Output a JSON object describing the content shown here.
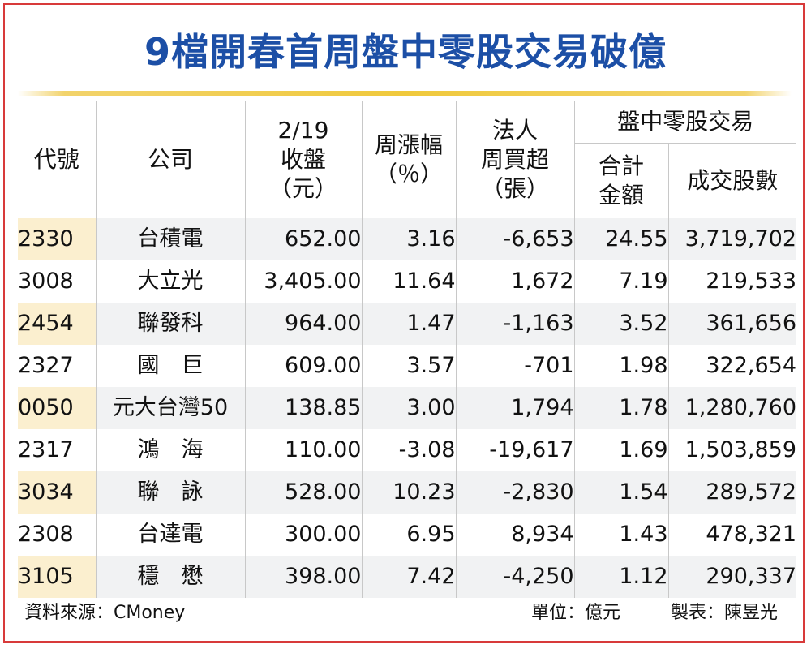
{
  "title": "9檔開春首周盤中零股交易破億",
  "headers": {
    "code": "代號",
    "company": "公司",
    "close": "2/19\n收盤\n（元）",
    "change": "周漲幅\n（％）",
    "inst": "法人\n周買超\n（張）",
    "group": "盤中零股交易",
    "amount": "合計\n金額",
    "shares": "成交股數"
  },
  "rows": [
    {
      "code": "2330",
      "company": "台積電",
      "close": "652.00",
      "change": "3.16",
      "inst": "-6,653",
      "amount": "24.55",
      "shares": "3,719,702"
    },
    {
      "code": "3008",
      "company": "大立光",
      "close": "3,405.00",
      "change": "11.64",
      "inst": "1,672",
      "amount": "7.19",
      "shares": "219,533"
    },
    {
      "code": "2454",
      "company": "聯發科",
      "close": "964.00",
      "change": "1.47",
      "inst": "-1,163",
      "amount": "3.52",
      "shares": "361,656"
    },
    {
      "code": "2327",
      "company": "國　巨",
      "close": "609.00",
      "change": "3.57",
      "inst": "-701",
      "amount": "1.98",
      "shares": "322,654"
    },
    {
      "code": "0050",
      "company": "元大台灣50",
      "close": "138.85",
      "change": "3.00",
      "inst": "1,794",
      "amount": "1.78",
      "shares": "1,280,760"
    },
    {
      "code": "2317",
      "company": "鴻　海",
      "close": "110.00",
      "change": "-3.08",
      "inst": "-19,617",
      "amount": "1.69",
      "shares": "1,503,859"
    },
    {
      "code": "3034",
      "company": "聯　詠",
      "close": "528.00",
      "change": "10.23",
      "inst": "-2,830",
      "amount": "1.54",
      "shares": "289,572"
    },
    {
      "code": "2308",
      "company": "台達電",
      "close": "300.00",
      "change": "6.95",
      "inst": "8,934",
      "amount": "1.43",
      "shares": "478,321"
    },
    {
      "code": "3105",
      "company": "穩　懋",
      "close": "398.00",
      "change": "7.42",
      "inst": "-4,250",
      "amount": "1.12",
      "shares": "290,337"
    }
  ],
  "footer": {
    "source": "資料來源：CMoney",
    "unit": "單位：億元",
    "maker": "製表：陳昱光"
  },
  "colors": {
    "title": "#1c4fa6",
    "frame": "#d83a3a",
    "rule": "#f0c93c",
    "stripe": "#f1f2f3",
    "code_stripe": "#fbefcf"
  }
}
